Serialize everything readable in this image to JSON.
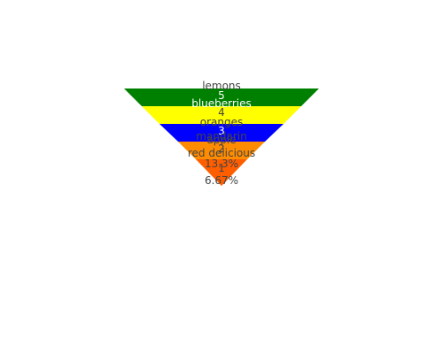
{
  "chart_data": {
    "type": "funnelarea",
    "slices": [
      {
        "label": "lemons",
        "value": 5,
        "color": "#008000",
        "text_color": "#ffffff"
      },
      {
        "label": "blueberries",
        "value": 4,
        "color": "#ffff00",
        "text_color": "#ffffff"
      },
      {
        "label": "oranges",
        "value": 3,
        "color": "#0000ff",
        "text_color": "#444444"
      },
      {
        "label": "mandarin",
        "value": 2,
        "color": "#ff8c00",
        "text_color": "#444444"
      },
      {
        "label": "apple",
        "value": 2,
        "color": "#ff8c00",
        "text_color": "#444444"
      },
      {
        "label": "red delicious",
        "value": 1,
        "color": "#ff5e00",
        "text_color": "#444444"
      }
    ],
    "tip_labels": [
      {
        "text": "13.3%"
      },
      {
        "text": "1"
      },
      {
        "text": "6.67%"
      }
    ]
  }
}
